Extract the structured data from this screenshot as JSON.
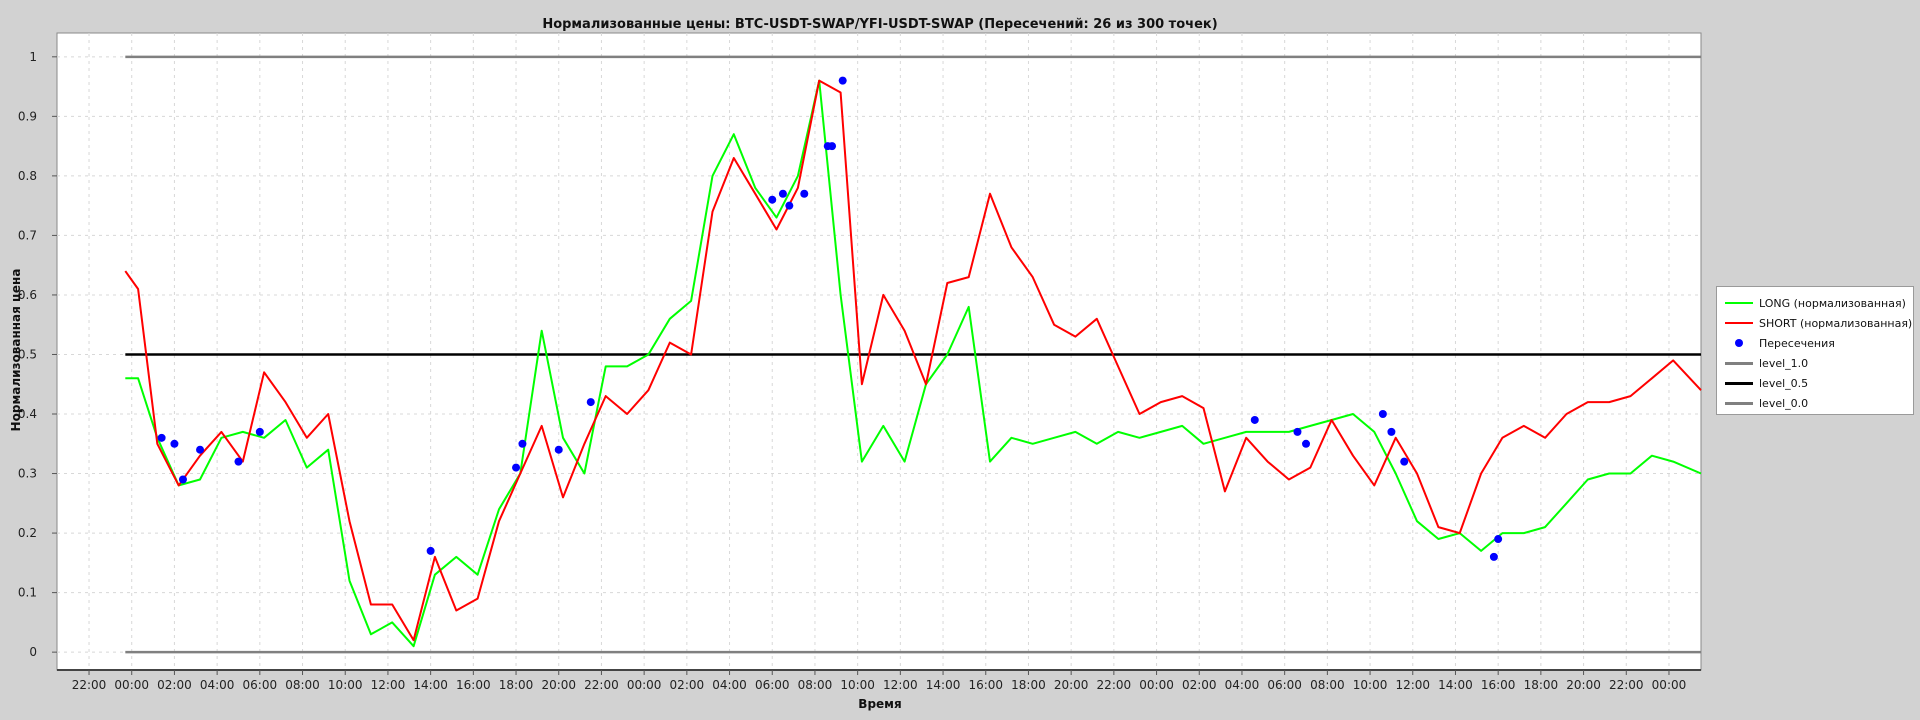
{
  "chart_data": {
    "type": "line",
    "title": "Нормализованные цены: BTC-USDT-SWAP/YFI-USDT-SWAP (Пересечений: 26 из 300 точек)",
    "xlabel": "Время",
    "ylabel": "Нормализованная цена",
    "ylim": [
      -0.03,
      1.04
    ],
    "y_ticks": [
      "0",
      "0.1",
      "0.2",
      "0.3",
      "0.4",
      "0.5",
      "0.6",
      "0.7",
      "0.8",
      "0.9",
      "1"
    ],
    "x_axis_unit": "hours",
    "x_range_hours": [
      -3.5,
      73.5
    ],
    "x_tick_hours": [
      -2,
      0,
      2,
      4,
      6,
      8,
      10,
      12,
      14,
      16,
      18,
      20,
      22,
      24,
      26,
      28,
      30,
      32,
      34,
      36,
      38,
      40,
      42,
      44,
      46,
      48,
      50,
      52,
      54,
      56,
      58,
      60,
      62,
      64,
      66,
      68,
      70,
      72
    ],
    "x_tick_labels": [
      "22:00",
      "00:00",
      "02:00",
      "04:00",
      "06:00",
      "08:00",
      "10:00",
      "12:00",
      "14:00",
      "16:00",
      "18:00",
      "20:00",
      "22:00",
      "00:00",
      "02:00",
      "04:00",
      "06:00",
      "08:00",
      "10:00",
      "12:00",
      "14:00",
      "16:00",
      "18:00",
      "20:00",
      "22:00",
      "00:00",
      "02:00",
      "04:00",
      "06:00",
      "08:00",
      "10:00",
      "12:00",
      "14:00",
      "16:00",
      "18:00",
      "20:00",
      "22:00",
      "00:00"
    ],
    "grid": true,
    "legend_position": "right",
    "x_hours": [
      -0.3,
      0.3,
      1.2,
      2.2,
      3.2,
      4.2,
      5.2,
      6.2,
      7.2,
      8.2,
      9.2,
      10.2,
      11.2,
      12.2,
      13.2,
      14.2,
      15.2,
      16.2,
      17.2,
      18.2,
      19.2,
      20.2,
      21.2,
      22.2,
      23.2,
      24.2,
      25.2,
      26.2,
      27.2,
      28.2,
      29.2,
      30.2,
      31.2,
      32.2,
      33.2,
      34.2,
      35.2,
      36.2,
      37.2,
      38.2,
      39.2,
      40.2,
      41.2,
      42.2,
      43.2,
      44.2,
      45.2,
      46.2,
      47.2,
      48.2,
      49.2,
      50.2,
      51.2,
      52.2,
      53.2,
      54.2,
      55.2,
      56.2,
      57.2,
      58.2,
      59.2,
      60.2,
      61.2,
      62.2,
      63.2,
      64.2,
      65.2,
      66.2,
      67.2,
      68.2,
      69.2,
      70.2,
      71.2,
      72.2,
      73.5
    ],
    "series": [
      {
        "name": "LONG (нормализованная)",
        "color": "#00ff00",
        "y": [
          0.46,
          0.46,
          0.36,
          0.28,
          0.29,
          0.36,
          0.37,
          0.36,
          0.39,
          0.31,
          0.34,
          0.12,
          0.03,
          0.05,
          0.01,
          0.13,
          0.16,
          0.13,
          0.24,
          0.3,
          0.54,
          0.36,
          0.3,
          0.48,
          0.48,
          0.5,
          0.56,
          0.59,
          0.8,
          0.87,
          0.78,
          0.73,
          0.8,
          0.96,
          0.6,
          0.32,
          0.38,
          0.32,
          0.45,
          0.5,
          0.58,
          0.32,
          0.36,
          0.35,
          0.36,
          0.37,
          0.35,
          0.37,
          0.36,
          0.37,
          0.38,
          0.35,
          0.36,
          0.37,
          0.37,
          0.37,
          0.38,
          0.39,
          0.4,
          0.37,
          0.3,
          0.22,
          0.19,
          0.2,
          0.17,
          0.2,
          0.2,
          0.21,
          0.25,
          0.29,
          0.3,
          0.3,
          0.33,
          0.32,
          0.3
        ]
      },
      {
        "name": "SHORT (нормализованная)",
        "color": "#ff0000",
        "y": [
          0.64,
          0.61,
          0.35,
          0.28,
          0.33,
          0.37,
          0.32,
          0.47,
          0.42,
          0.36,
          0.4,
          0.22,
          0.08,
          0.08,
          0.02,
          0.16,
          0.07,
          0.09,
          0.22,
          0.3,
          0.38,
          0.26,
          0.35,
          0.43,
          0.4,
          0.44,
          0.52,
          0.5,
          0.74,
          0.83,
          0.77,
          0.71,
          0.78,
          0.96,
          0.94,
          0.45,
          0.6,
          0.54,
          0.45,
          0.62,
          0.63,
          0.77,
          0.68,
          0.63,
          0.55,
          0.53,
          0.56,
          0.48,
          0.4,
          0.42,
          0.43,
          0.41,
          0.27,
          0.36,
          0.32,
          0.29,
          0.31,
          0.39,
          0.33,
          0.28,
          0.36,
          0.3,
          0.21,
          0.2,
          0.3,
          0.36,
          0.38,
          0.36,
          0.4,
          0.42,
          0.42,
          0.43,
          0.46,
          0.49,
          0.44
        ]
      }
    ],
    "intersections": {
      "name": "Пересечения",
      "color": "#0000ff",
      "x": [
        1.4,
        2.0,
        2.4,
        3.2,
        5.0,
        6.0,
        18.0,
        18.3,
        20.0,
        21.5,
        14.0,
        30.0,
        30.5,
        30.8,
        31.5,
        32.6,
        32.8,
        33.3,
        52.6,
        54.6,
        55.0,
        58.6,
        59.0,
        59.6,
        63.8,
        64.0
      ],
      "y": [
        0.36,
        0.35,
        0.29,
        0.34,
        0.32,
        0.37,
        0.31,
        0.35,
        0.34,
        0.42,
        0.17,
        0.76,
        0.77,
        0.75,
        0.77,
        0.85,
        0.85,
        0.96,
        0.39,
        0.37,
        0.35,
        0.4,
        0.37,
        0.32,
        0.16,
        0.19
      ]
    },
    "levels": [
      {
        "name": "level_1.0",
        "value": 1.0,
        "color": "#808080"
      },
      {
        "name": "level_0.5",
        "value": 0.5,
        "color": "#000000"
      },
      {
        "name": "level_0.0",
        "value": 0.0,
        "color": "#808080"
      }
    ]
  }
}
